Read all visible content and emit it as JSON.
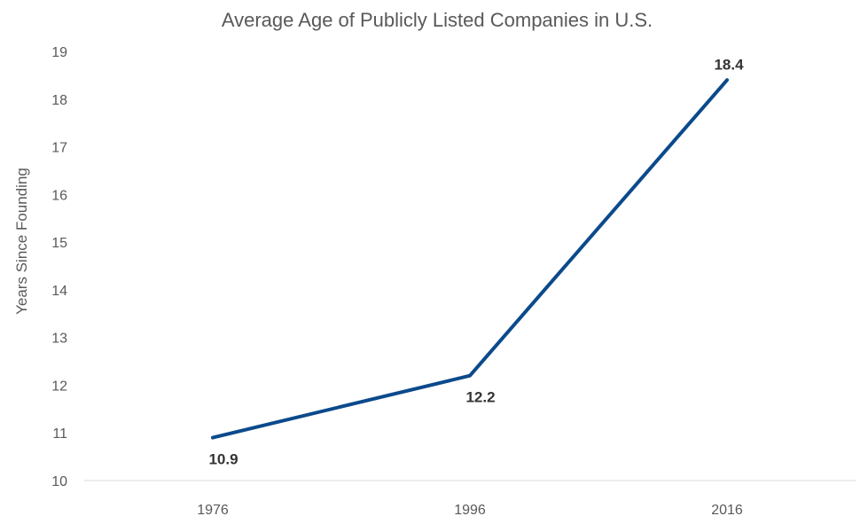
{
  "chart_data": {
    "type": "line",
    "title": "Average Age of Publicly Listed Companies in U.S.",
    "xlabel": "",
    "ylabel": "Years Since Founding",
    "categories": [
      "1976",
      "1996",
      "2016"
    ],
    "series": [
      {
        "values": [
          10.9,
          12.2,
          18.4
        ],
        "color": "#0b4a8b"
      }
    ],
    "data_labels": [
      "10.9",
      "12.2",
      "18.4"
    ],
    "ylim": [
      10,
      19
    ],
    "yticks": [
      "10",
      "11",
      "12",
      "13",
      "14",
      "15",
      "16",
      "17",
      "18",
      "19"
    ],
    "grid": false,
    "legend": "none"
  }
}
